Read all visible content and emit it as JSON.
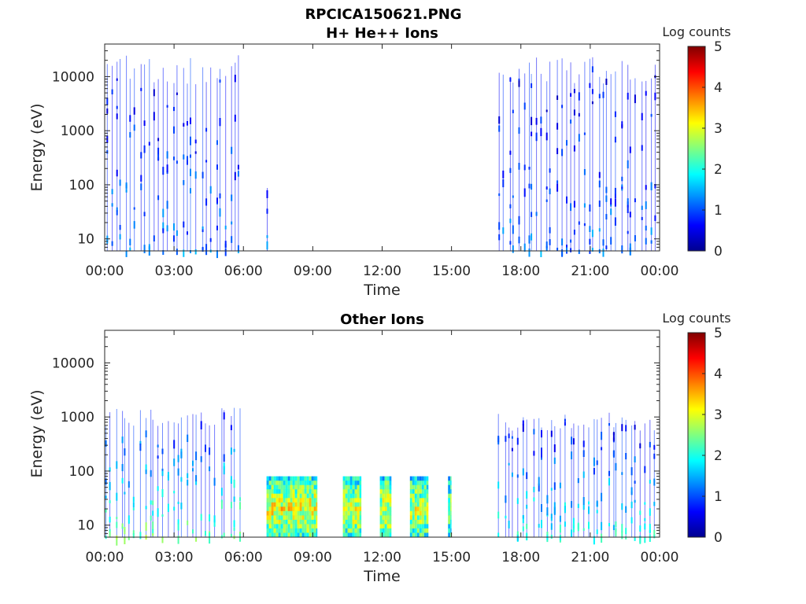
{
  "figure": {
    "title": "RPCICA150621.PNG"
  },
  "colormap": [
    "#00008f",
    "#0000ff",
    "#0080ff",
    "#00ffff",
    "#80ff80",
    "#ffff00",
    "#ff8000",
    "#ff0000",
    "#800000"
  ],
  "chart_data": [
    {
      "type": "heatmap",
      "title": "H+ He++ Ions",
      "xlabel": "Time",
      "ylabel": "Energy (eV)",
      "x_ticks": [
        "00:00",
        "03:00",
        "06:00",
        "09:00",
        "12:00",
        "15:00",
        "18:00",
        "21:00",
        "00:00"
      ],
      "x_range_hours": [
        0,
        24
      ],
      "y_ticks": [
        "10",
        "100",
        "1000",
        "10000"
      ],
      "y_scale": "log",
      "ylim": [
        6,
        40000
      ],
      "colorbar": {
        "label": "Log counts",
        "ticks": [
          "0",
          "1",
          "2",
          "3",
          "4",
          "5"
        ],
        "range": [
          0,
          5
        ]
      },
      "segments": [
        {
          "start_h": 0.0,
          "end_h": 5.95,
          "emin": 8,
          "emax": 25000,
          "intensity": 0.7,
          "pattern": "stripes"
        },
        {
          "start_h": 7.0,
          "end_h": 7.05,
          "emin": 8,
          "emax": 90,
          "intensity": 0.8,
          "pattern": "stripes"
        },
        {
          "start_h": 17.0,
          "end_h": 23.9,
          "emin": 8,
          "emax": 25000,
          "intensity": 0.7,
          "pattern": "stripes"
        }
      ]
    },
    {
      "type": "heatmap",
      "title": "Other Ions",
      "xlabel": "Time",
      "ylabel": "Energy (eV)",
      "x_ticks": [
        "00:00",
        "03:00",
        "06:00",
        "09:00",
        "12:00",
        "15:00",
        "18:00",
        "21:00",
        "00:00"
      ],
      "x_range_hours": [
        0,
        24
      ],
      "y_ticks": [
        "10",
        "100",
        "1000",
        "10000"
      ],
      "y_scale": "log",
      "ylim": [
        6,
        40000
      ],
      "colorbar": {
        "label": "Log counts",
        "ticks": [
          "0",
          "1",
          "2",
          "3",
          "4",
          "5"
        ],
        "range": [
          0,
          5
        ]
      },
      "segments": [
        {
          "start_h": 0.0,
          "end_h": 5.95,
          "emin": 8,
          "emax": 1500,
          "intensity": 1.8,
          "pattern": "stripes"
        },
        {
          "start_h": 7.0,
          "end_h": 9.2,
          "emin": 8,
          "emax": 80,
          "intensity": 2.8,
          "pattern": "solid"
        },
        {
          "start_h": 10.3,
          "end_h": 11.1,
          "emin": 8,
          "emax": 80,
          "intensity": 2.7,
          "pattern": "solid"
        },
        {
          "start_h": 11.9,
          "end_h": 12.4,
          "emin": 8,
          "emax": 80,
          "intensity": 2.7,
          "pattern": "solid"
        },
        {
          "start_h": 13.2,
          "end_h": 14.0,
          "emin": 8,
          "emax": 80,
          "intensity": 2.6,
          "pattern": "solid"
        },
        {
          "start_h": 14.85,
          "end_h": 15.0,
          "emin": 8,
          "emax": 80,
          "intensity": 2.4,
          "pattern": "solid"
        },
        {
          "start_h": 17.0,
          "end_h": 23.9,
          "emin": 8,
          "emax": 1200,
          "intensity": 1.4,
          "pattern": "stripes"
        }
      ]
    }
  ]
}
